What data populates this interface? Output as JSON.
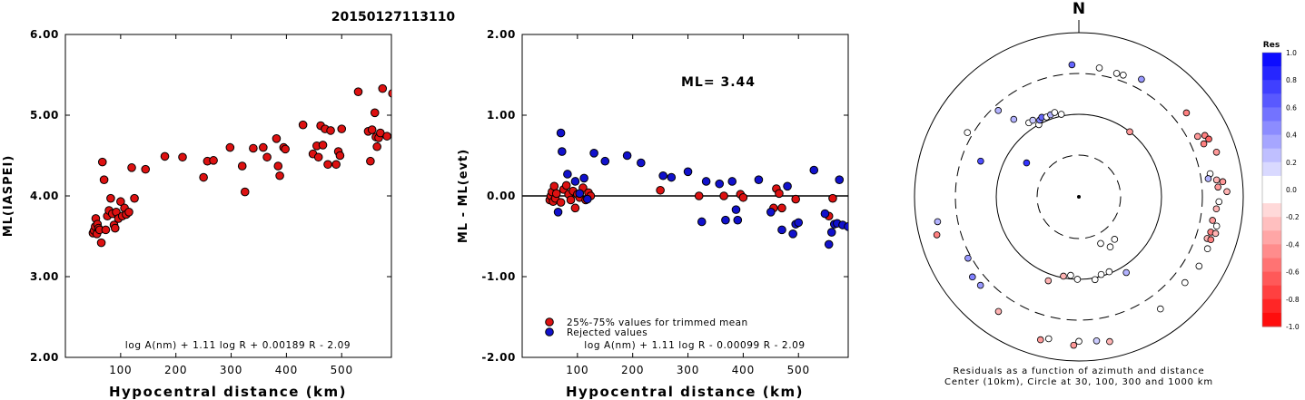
{
  "figure_title": "20150127113110",
  "colors": {
    "trimmed": "#dd1111",
    "rejected": "#1111cc"
  },
  "chart_data": [
    {
      "type": "scatter",
      "xlabel": "Hypocentral distance (km)",
      "ylabel": "ML(IASPEI)",
      "xlim": [
        0,
        590
      ],
      "ylim": [
        2.0,
        6.0
      ],
      "xticks": [
        "100",
        "200",
        "300",
        "400",
        "500"
      ],
      "yticks": [
        "2.00",
        "3.00",
        "4.00",
        "5.00",
        "6.00"
      ],
      "formula": "log A(nm) + 1.11 log R + 0.00189 R - 2.09",
      "points": [
        [
          50,
          3.54
        ],
        [
          52,
          3.57
        ],
        [
          54,
          3.62
        ],
        [
          55,
          3.72
        ],
        [
          57,
          3.53
        ],
        [
          58,
          3.65
        ],
        [
          60,
          3.6
        ],
        [
          62,
          3.58
        ],
        [
          65,
          3.42
        ],
        [
          67,
          4.42
        ],
        [
          70,
          4.2
        ],
        [
          73,
          3.58
        ],
        [
          76,
          3.75
        ],
        [
          79,
          3.82
        ],
        [
          82,
          3.97
        ],
        [
          85,
          3.78
        ],
        [
          88,
          3.64
        ],
        [
          90,
          3.6
        ],
        [
          92,
          3.8
        ],
        [
          96,
          3.72
        ],
        [
          100,
          3.93
        ],
        [
          103,
          3.75
        ],
        [
          107,
          3.85
        ],
        [
          110,
          3.77
        ],
        [
          115,
          3.8
        ],
        [
          120,
          4.35
        ],
        [
          125,
          3.97
        ],
        [
          145,
          4.33
        ],
        [
          180,
          4.49
        ],
        [
          212,
          4.48
        ],
        [
          250,
          4.23
        ],
        [
          257,
          4.43
        ],
        [
          268,
          4.44
        ],
        [
          298,
          4.6
        ],
        [
          320,
          4.37
        ],
        [
          325,
          4.05
        ],
        [
          340,
          4.59
        ],
        [
          358,
          4.6
        ],
        [
          365,
          4.48
        ],
        [
          382,
          4.71
        ],
        [
          385,
          4.37
        ],
        [
          388,
          4.25
        ],
        [
          395,
          4.6
        ],
        [
          398,
          4.58
        ],
        [
          430,
          4.88
        ],
        [
          448,
          4.52
        ],
        [
          455,
          4.62
        ],
        [
          458,
          4.48
        ],
        [
          462,
          4.87
        ],
        [
          466,
          4.63
        ],
        [
          470,
          4.83
        ],
        [
          475,
          4.39
        ],
        [
          480,
          4.81
        ],
        [
          490,
          4.39
        ],
        [
          494,
          4.55
        ],
        [
          497,
          4.5
        ],
        [
          500,
          4.83
        ],
        [
          530,
          5.29
        ],
        [
          548,
          4.8
        ],
        [
          552,
          4.43
        ],
        [
          555,
          4.82
        ],
        [
          560,
          5.03
        ],
        [
          562,
          4.73
        ],
        [
          564,
          4.61
        ],
        [
          567,
          4.72
        ],
        [
          570,
          4.78
        ],
        [
          574,
          5.33
        ],
        [
          582,
          4.74
        ],
        [
          592,
          5.27
        ]
      ]
    },
    {
      "type": "scatter",
      "xlabel": "Hypocentral distance (km)",
      "ylabel": "ML - ML(evt)",
      "xlim": [
        0,
        590
      ],
      "ylim": [
        -2.0,
        2.0
      ],
      "xticks": [
        "100",
        "200",
        "300",
        "400",
        "500"
      ],
      "yticks": [
        "-2.00",
        "-1.00",
        "0.00",
        "1.00",
        "2.00"
      ],
      "ml_label": "ML= 3.44",
      "formula": "log A(nm) + 1.11 log R - 0.00099 R - 2.09",
      "legend": [
        {
          "series": "trimmed",
          "label": "25%-75% values for trimmed mean"
        },
        {
          "series": "rejected",
          "label": "Rejected values"
        }
      ],
      "points_trimmed": [
        [
          50,
          -0.05
        ],
        [
          52,
          0.0
        ],
        [
          54,
          0.05
        ],
        [
          56,
          -0.07
        ],
        [
          58,
          0.12
        ],
        [
          60,
          -0.03
        ],
        [
          62,
          0.03
        ],
        [
          70,
          -0.08
        ],
        [
          75,
          0.08
        ],
        [
          80,
          0.13
        ],
        [
          84,
          0.02
        ],
        [
          88,
          -0.05
        ],
        [
          92,
          0.06
        ],
        [
          96,
          -0.15
        ],
        [
          100,
          0.02
        ],
        [
          104,
          -0.02
        ],
        [
          110,
          0.1
        ],
        [
          115,
          -0.05
        ],
        [
          120,
          0.04
        ],
        [
          124,
          0.0
        ],
        [
          250,
          0.07
        ],
        [
          320,
          0.0
        ],
        [
          365,
          0.0
        ],
        [
          395,
          0.02
        ],
        [
          400,
          -0.02
        ],
        [
          455,
          -0.15
        ],
        [
          460,
          0.09
        ],
        [
          465,
          0.03
        ],
        [
          470,
          -0.15
        ],
        [
          495,
          -0.04
        ],
        [
          555,
          -0.25
        ],
        [
          562,
          -0.03
        ]
      ],
      "points_rejected": [
        [
          65,
          -0.2
        ],
        [
          70,
          0.78
        ],
        [
          72,
          0.55
        ],
        [
          82,
          0.27
        ],
        [
          96,
          0.18
        ],
        [
          104,
          0.03
        ],
        [
          112,
          0.22
        ],
        [
          118,
          -0.04
        ],
        [
          130,
          0.53
        ],
        [
          150,
          0.43
        ],
        [
          190,
          0.5
        ],
        [
          215,
          0.41
        ],
        [
          255,
          0.25
        ],
        [
          270,
          0.23
        ],
        [
          300,
          0.3
        ],
        [
          325,
          -0.32
        ],
        [
          333,
          0.18
        ],
        [
          357,
          0.15
        ],
        [
          368,
          -0.3
        ],
        [
          380,
          0.18
        ],
        [
          387,
          -0.17
        ],
        [
          390,
          -0.3
        ],
        [
          428,
          0.2
        ],
        [
          450,
          -0.2
        ],
        [
          470,
          -0.42
        ],
        [
          480,
          0.12
        ],
        [
          490,
          -0.47
        ],
        [
          495,
          -0.35
        ],
        [
          500,
          -0.33
        ],
        [
          528,
          0.32
        ],
        [
          548,
          -0.22
        ],
        [
          555,
          -0.6
        ],
        [
          560,
          -0.45
        ],
        [
          565,
          -0.35
        ],
        [
          570,
          -0.34
        ],
        [
          574,
          0.2
        ],
        [
          580,
          -0.36
        ],
        [
          590,
          -0.38
        ]
      ]
    },
    {
      "type": "scatter",
      "subtype": "polar",
      "north_label": "N",
      "caption_line1": "Residuals as a function of azimuth and distance",
      "caption_line2": "Center (10km), Circle at 30, 100, 300 and 1000 km",
      "colorbar_title": "Res",
      "colorbar_ticks": [
        "1.0",
        "0.8",
        "0.6",
        "0.4",
        "0.2",
        "0.0",
        "-0.2",
        "-0.4",
        "-0.6",
        "-0.8",
        "-1.0"
      ],
      "colorbar_range": [
        -1.0,
        1.0
      ],
      "points": [
        {
          "az": 357,
          "dist": 390,
          "res": 0.6
        },
        {
          "az": 9,
          "dist": 370,
          "res": 0.0
        },
        {
          "az": 17,
          "dist": 355,
          "res": 0.0
        },
        {
          "az": 20,
          "dist": 360,
          "res": 0.0
        },
        {
          "az": 28,
          "dist": 400,
          "res": 0.4
        },
        {
          "az": 300,
          "dist": 350,
          "res": 0.0
        },
        {
          "az": 317,
          "dist": 260,
          "res": 0.3
        },
        {
          "az": 326,
          "dist": 120,
          "res": 0.0
        },
        {
          "az": 329,
          "dist": 120,
          "res": 0.2
        },
        {
          "az": 331,
          "dist": 100,
          "res": 0.0
        },
        {
          "az": 333,
          "dist": 110,
          "res": 0.5
        },
        {
          "az": 335,
          "dist": 115,
          "res": 0.6
        },
        {
          "az": 338,
          "dist": 110,
          "res": 0.0
        },
        {
          "az": 341,
          "dist": 112,
          "res": 0.3
        },
        {
          "az": 344,
          "dist": 115,
          "res": 0.0
        },
        {
          "az": 348,
          "dist": 105,
          "res": 0.0
        },
        {
          "az": 320,
          "dist": 165,
          "res": 0.3
        },
        {
          "az": 303,
          "dist": 55,
          "res": 0.8
        },
        {
          "az": 38,
          "dist": 100,
          "res": -0.4
        },
        {
          "az": 52,
          "dist": 440,
          "res": -0.5
        },
        {
          "az": 63,
          "dist": 400,
          "res": -0.4
        },
        {
          "az": 64,
          "dist": 490,
          "res": -0.5
        },
        {
          "az": 66,
          "dist": 520,
          "res": -0.6
        },
        {
          "az": 67,
          "dist": 430,
          "res": -0.5
        },
        {
          "az": 72,
          "dist": 560,
          "res": -0.4
        },
        {
          "az": 80,
          "dist": 400,
          "res": 0.0
        },
        {
          "az": 82,
          "dist": 370,
          "res": 0.3
        },
        {
          "az": 83,
          "dist": 470,
          "res": -0.3
        },
        {
          "az": 84,
          "dist": 560,
          "res": -0.4
        },
        {
          "az": 86,
          "dist": 480,
          "res": -0.4
        },
        {
          "az": 88,
          "dist": 620,
          "res": -0.3
        },
        {
          "az": 92,
          "dist": 490,
          "res": 0.0
        },
        {
          "az": 95,
          "dist": 460,
          "res": -0.3
        },
        {
          "az": 100,
          "dist": 430,
          "res": -0.4
        },
        {
          "az": 102,
          "dist": 500,
          "res": 0.0
        },
        {
          "az": 105,
          "dist": 440,
          "res": -0.5
        },
        {
          "az": 105,
          "dist": 510,
          "res": -0.3
        },
        {
          "az": 108,
          "dist": 420,
          "res": -0.3
        },
        {
          "az": 108,
          "dist": 470,
          "res": -0.5
        },
        {
          "az": 112,
          "dist": 470,
          "res": 0.0
        },
        {
          "az": 120,
          "dist": 470,
          "res": 0.0
        },
        {
          "az": 140,
          "dist": 45,
          "res": 0.0
        },
        {
          "az": 148,
          "dist": 50,
          "res": 0.0
        },
        {
          "az": 155,
          "dist": 40,
          "res": 0.0
        },
        {
          "az": 129,
          "dist": 440,
          "res": 0.0
        },
        {
          "az": 144,
          "dist": 470,
          "res": 0.0
        },
        {
          "az": 148,
          "dist": 120,
          "res": 0.3
        },
        {
          "az": 158,
          "dist": 95,
          "res": 0.0
        },
        {
          "az": 164,
          "dist": 95,
          "res": 0.0
        },
        {
          "az": 168,
          "dist": 620,
          "res": -0.3
        },
        {
          "az": 169,
          "dist": 105,
          "res": 0.0
        },
        {
          "az": 173,
          "dist": 570,
          "res": 0.2
        },
        {
          "az": 180,
          "dist": 560,
          "res": 0.0
        },
        {
          "az": 181,
          "dist": 100,
          "res": 0.0
        },
        {
          "az": 182,
          "dist": 630,
          "res": -0.4
        },
        {
          "az": 186,
          "dist": 90,
          "res": 0.0
        },
        {
          "az": 191,
          "dist": 95,
          "res": -0.3
        },
        {
          "az": 192,
          "dist": 570,
          "res": 0.0
        },
        {
          "az": 195,
          "dist": 620,
          "res": -0.4
        },
        {
          "az": 200,
          "dist": 120,
          "res": -0.3
        },
        {
          "az": 215,
          "dist": 490,
          "res": -0.3
        },
        {
          "az": 228,
          "dist": 390,
          "res": 0.4
        },
        {
          "az": 233,
          "dist": 400,
          "res": 0.5
        },
        {
          "az": 241,
          "dist": 330,
          "res": 0.4
        },
        {
          "az": 255,
          "dist": 600,
          "res": -0.5
        },
        {
          "az": 260,
          "dist": 540,
          "res": 0.3
        },
        {
          "az": 290,
          "dist": 180,
          "res": 0.7
        }
      ]
    }
  ]
}
